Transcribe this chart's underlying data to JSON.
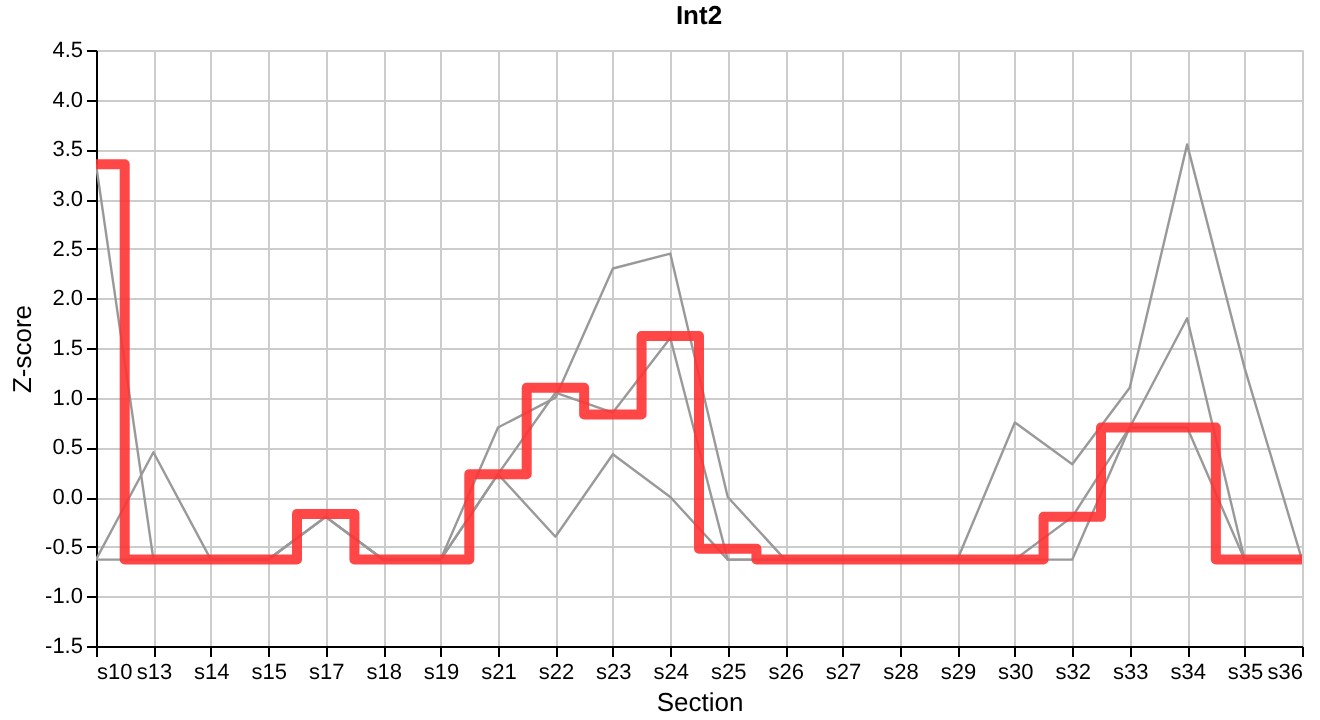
{
  "chart_data": {
    "type": "line",
    "title": "Int2",
    "xlabel": "Section",
    "ylabel": "Z-score",
    "categories": [
      "s10",
      "s13",
      "s14",
      "s15",
      "s17",
      "s18",
      "s19",
      "s21",
      "s22",
      "s23",
      "s24",
      "s25",
      "s26",
      "s27",
      "s28",
      "s29",
      "s30",
      "s32",
      "s33",
      "s34",
      "s35",
      "s36"
    ],
    "series": [
      {
        "type": "line",
        "color": "#999999",
        "values": [
          3.35,
          -0.63,
          -0.63,
          -0.63,
          -0.2,
          -0.63,
          -0.63,
          0.7,
          1.0,
          2.3,
          2.45,
          0.0,
          -0.63,
          -0.63,
          -0.63,
          -0.63,
          0.75,
          0.33,
          1.1,
          3.55,
          1.3,
          -0.63
        ]
      },
      {
        "type": "line",
        "color": "#999999",
        "values": [
          -0.63,
          0.45,
          -0.63,
          -0.63,
          -0.2,
          -0.63,
          -0.63,
          0.23,
          -0.4,
          0.43,
          0.0,
          -0.63,
          -0.63,
          -0.63,
          -0.63,
          -0.63,
          -0.63,
          -0.63,
          0.7,
          0.7,
          -0.63,
          -0.63
        ]
      },
      {
        "type": "line",
        "color": "#999999",
        "values": [
          -0.63,
          -0.63,
          -0.63,
          -0.63,
          -0.2,
          -0.63,
          -0.63,
          0.23,
          1.05,
          0.85,
          1.6,
          -0.63,
          -0.63,
          -0.63,
          -0.63,
          -0.63,
          -0.63,
          -0.2,
          0.7,
          1.8,
          -0.63,
          -0.63
        ]
      },
      {
        "type": "step",
        "color": "#ff3333",
        "values": [
          3.35,
          -0.63,
          -0.63,
          -0.63,
          -0.17,
          -0.63,
          -0.63,
          0.23,
          1.1,
          0.83,
          1.62,
          -0.52,
          -0.63,
          -0.63,
          -0.63,
          -0.63,
          -0.63,
          -0.2,
          0.7,
          0.7,
          -0.63,
          -0.63
        ]
      }
    ],
    "ylim": [
      -1.5,
      4.5
    ],
    "yticks": [
      -1.5,
      {
        "value": -1,
        "label": "-1.0"
      },
      -0.5,
      {
        "value": 0,
        "label": "0.0"
      },
      0.5,
      {
        "value": 1,
        "label": "1.0"
      },
      1.5,
      {
        "value": 2,
        "label": "2.0"
      },
      2.5,
      {
        "value": 3,
        "label": "3.0"
      },
      3.5,
      {
        "value": 4,
        "label": "4.0"
      },
      4.5
    ],
    "grid": true
  }
}
